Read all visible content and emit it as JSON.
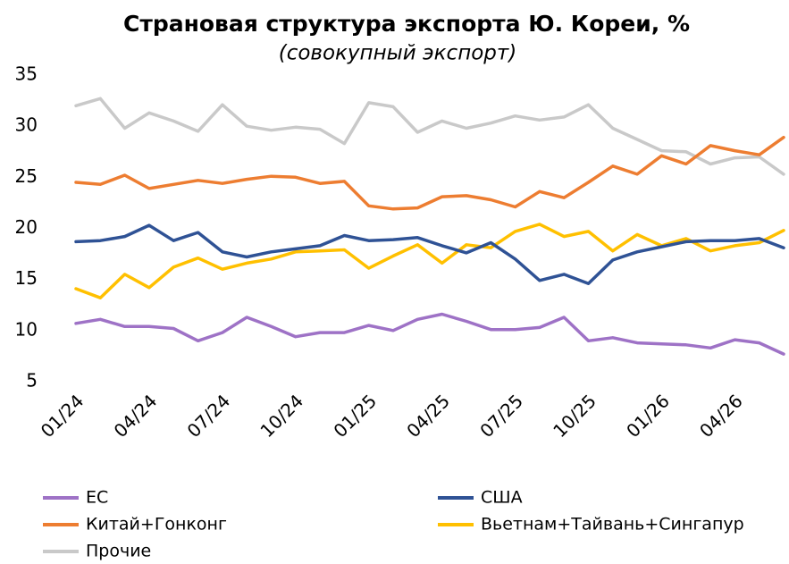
{
  "chart_data": {
    "type": "line",
    "title": "Страновая структура экспорта Ю. Кореи, %",
    "subtitle": "(совокупный экспорт)",
    "categories": [
      "01/24",
      null,
      null,
      "04/24",
      null,
      null,
      "07/24",
      null,
      null,
      "10/24",
      null,
      null,
      "01/25",
      null,
      null,
      "04/25",
      null,
      null,
      "07/25",
      null,
      null,
      "10/25",
      null,
      null,
      "01/26",
      null,
      null,
      "04/26",
      null,
      null
    ],
    "ylim": [
      5,
      35
    ],
    "yticks": [
      5,
      10,
      15,
      20,
      25,
      30,
      35
    ],
    "grid": false,
    "series": [
      {
        "name": "ЕС",
        "color": "#9e72c6",
        "values": [
          10.7,
          11.1,
          10.4,
          10.4,
          10.2,
          9.0,
          9.8,
          11.3,
          10.4,
          9.4,
          9.8,
          9.8,
          10.5,
          10.0,
          11.1,
          11.6,
          10.9,
          10.1,
          10.1,
          10.3,
          11.3,
          9.0,
          9.3,
          8.8,
          8.7,
          8.6,
          8.3,
          9.1,
          8.8,
          7.7
        ]
      },
      {
        "name": "США",
        "color": "#2f5295",
        "values": [
          18.7,
          18.8,
          19.2,
          20.3,
          18.8,
          19.6,
          17.7,
          17.2,
          17.7,
          18.0,
          18.3,
          19.3,
          18.8,
          18.9,
          19.1,
          18.3,
          17.6,
          18.6,
          17.0,
          14.9,
          15.5,
          14.6,
          16.9,
          17.7,
          18.2,
          18.7,
          18.8,
          18.8,
          19.0,
          18.1
        ]
      },
      {
        "name": "Китай+Гонконг",
        "color": "#ed7d31",
        "values": [
          24.5,
          24.3,
          25.2,
          23.9,
          24.3,
          24.7,
          24.4,
          24.8,
          25.1,
          25.0,
          24.4,
          24.6,
          22.2,
          21.9,
          22.0,
          23.1,
          23.2,
          22.8,
          22.1,
          23.6,
          23.0,
          24.5,
          26.1,
          25.3,
          27.1,
          26.3,
          28.1,
          27.6,
          27.2,
          28.9
        ]
      },
      {
        "name": "Вьетнам+Тайвань+Сингапур",
        "color": "#ffc000",
        "values": [
          14.1,
          13.2,
          15.5,
          14.2,
          16.2,
          17.1,
          16.0,
          16.6,
          17.0,
          17.7,
          17.8,
          17.9,
          16.1,
          17.3,
          18.4,
          16.6,
          18.4,
          18.1,
          19.7,
          20.4,
          19.2,
          19.7,
          17.8,
          19.4,
          18.3,
          19.0,
          17.8,
          18.3,
          18.6,
          19.8
        ]
      },
      {
        "name": "Прочие",
        "color": "#c9c9c9",
        "values": [
          32.0,
          32.7,
          29.8,
          31.3,
          30.5,
          29.5,
          32.1,
          30.0,
          29.6,
          29.9,
          29.7,
          28.3,
          32.3,
          31.9,
          29.4,
          30.5,
          29.8,
          30.3,
          31.0,
          30.6,
          30.9,
          32.1,
          29.8,
          28.7,
          27.6,
          27.5,
          26.3,
          26.9,
          27.0,
          25.3
        ]
      }
    ]
  }
}
